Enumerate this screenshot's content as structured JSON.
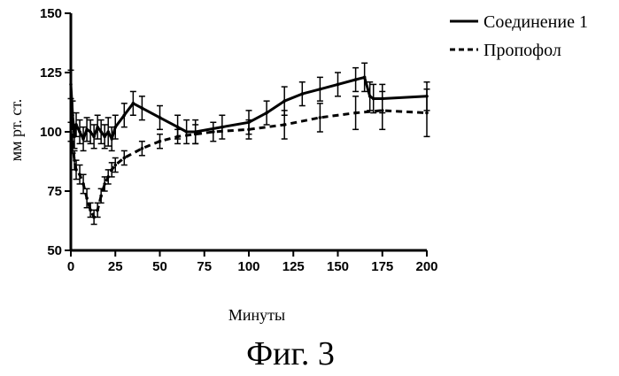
{
  "chart_data": {
    "type": "line",
    "xlabel": "Минуты",
    "ylabel": "мм рт. ст.",
    "xlim": [
      0,
      200
    ],
    "ylim": [
      50,
      150
    ],
    "xticks": [
      0,
      25,
      50,
      75,
      100,
      125,
      150,
      175,
      200
    ],
    "xtick_labels": [
      "0",
      "25",
      "50",
      "75",
      "100",
      "125",
      "150",
      "175",
      "200"
    ],
    "yticks": [
      50,
      75,
      100,
      125,
      150
    ],
    "ytick_labels": [
      "50",
      "75",
      "100",
      "125",
      "150"
    ],
    "grid": false,
    "legend_position": "top-right",
    "series": [
      {
        "name": "Соединение 1",
        "style": "solid",
        "color": "#000000",
        "x": [
          0,
          1,
          2,
          3,
          5,
          7,
          9,
          11,
          13,
          15,
          17,
          19,
          21,
          23,
          25,
          30,
          35,
          40,
          50,
          60,
          65,
          70,
          85,
          100,
          110,
          120,
          130,
          140,
          150,
          160,
          165,
          168,
          170,
          175,
          200
        ],
        "y": [
          120,
          107,
          98,
          103,
          100,
          97,
          101,
          100,
          98,
          102,
          100,
          98,
          100,
          97,
          102,
          107,
          112,
          110,
          106,
          102,
          100,
          100,
          102,
          104,
          108,
          113,
          116,
          118,
          120,
          122,
          123,
          115,
          114,
          114,
          115
        ],
        "err": [
          6,
          6,
          5,
          5,
          5,
          5,
          5,
          5,
          5,
          5,
          5,
          5,
          6,
          5,
          5,
          5,
          5,
          5,
          5,
          5,
          5,
          5,
          5,
          5,
          5,
          6,
          5,
          5,
          5,
          5,
          6,
          6,
          6,
          6,
          6
        ]
      },
      {
        "name": "Пропофол",
        "style": "dashed",
        "color": "#000000",
        "x": [
          0,
          1,
          2,
          3,
          5,
          7,
          9,
          11,
          13,
          15,
          17,
          19,
          21,
          23,
          25,
          30,
          40,
          50,
          60,
          70,
          80,
          100,
          120,
          140,
          160,
          175,
          200
        ],
        "y": [
          100,
          95,
          88,
          84,
          82,
          78,
          72,
          67,
          64,
          67,
          73,
          78,
          81,
          84,
          86,
          89,
          93,
          96,
          98,
          99,
          100,
          101,
          103,
          106,
          108,
          109,
          108
        ],
        "err": [
          4,
          4,
          4,
          4,
          4,
          4,
          4,
          3,
          3,
          3,
          3,
          3,
          3,
          3,
          3,
          3,
          3,
          3,
          3,
          4,
          4,
          4,
          6,
          6,
          7,
          8,
          10
        ]
      }
    ]
  },
  "caption": "Фиг. 3"
}
